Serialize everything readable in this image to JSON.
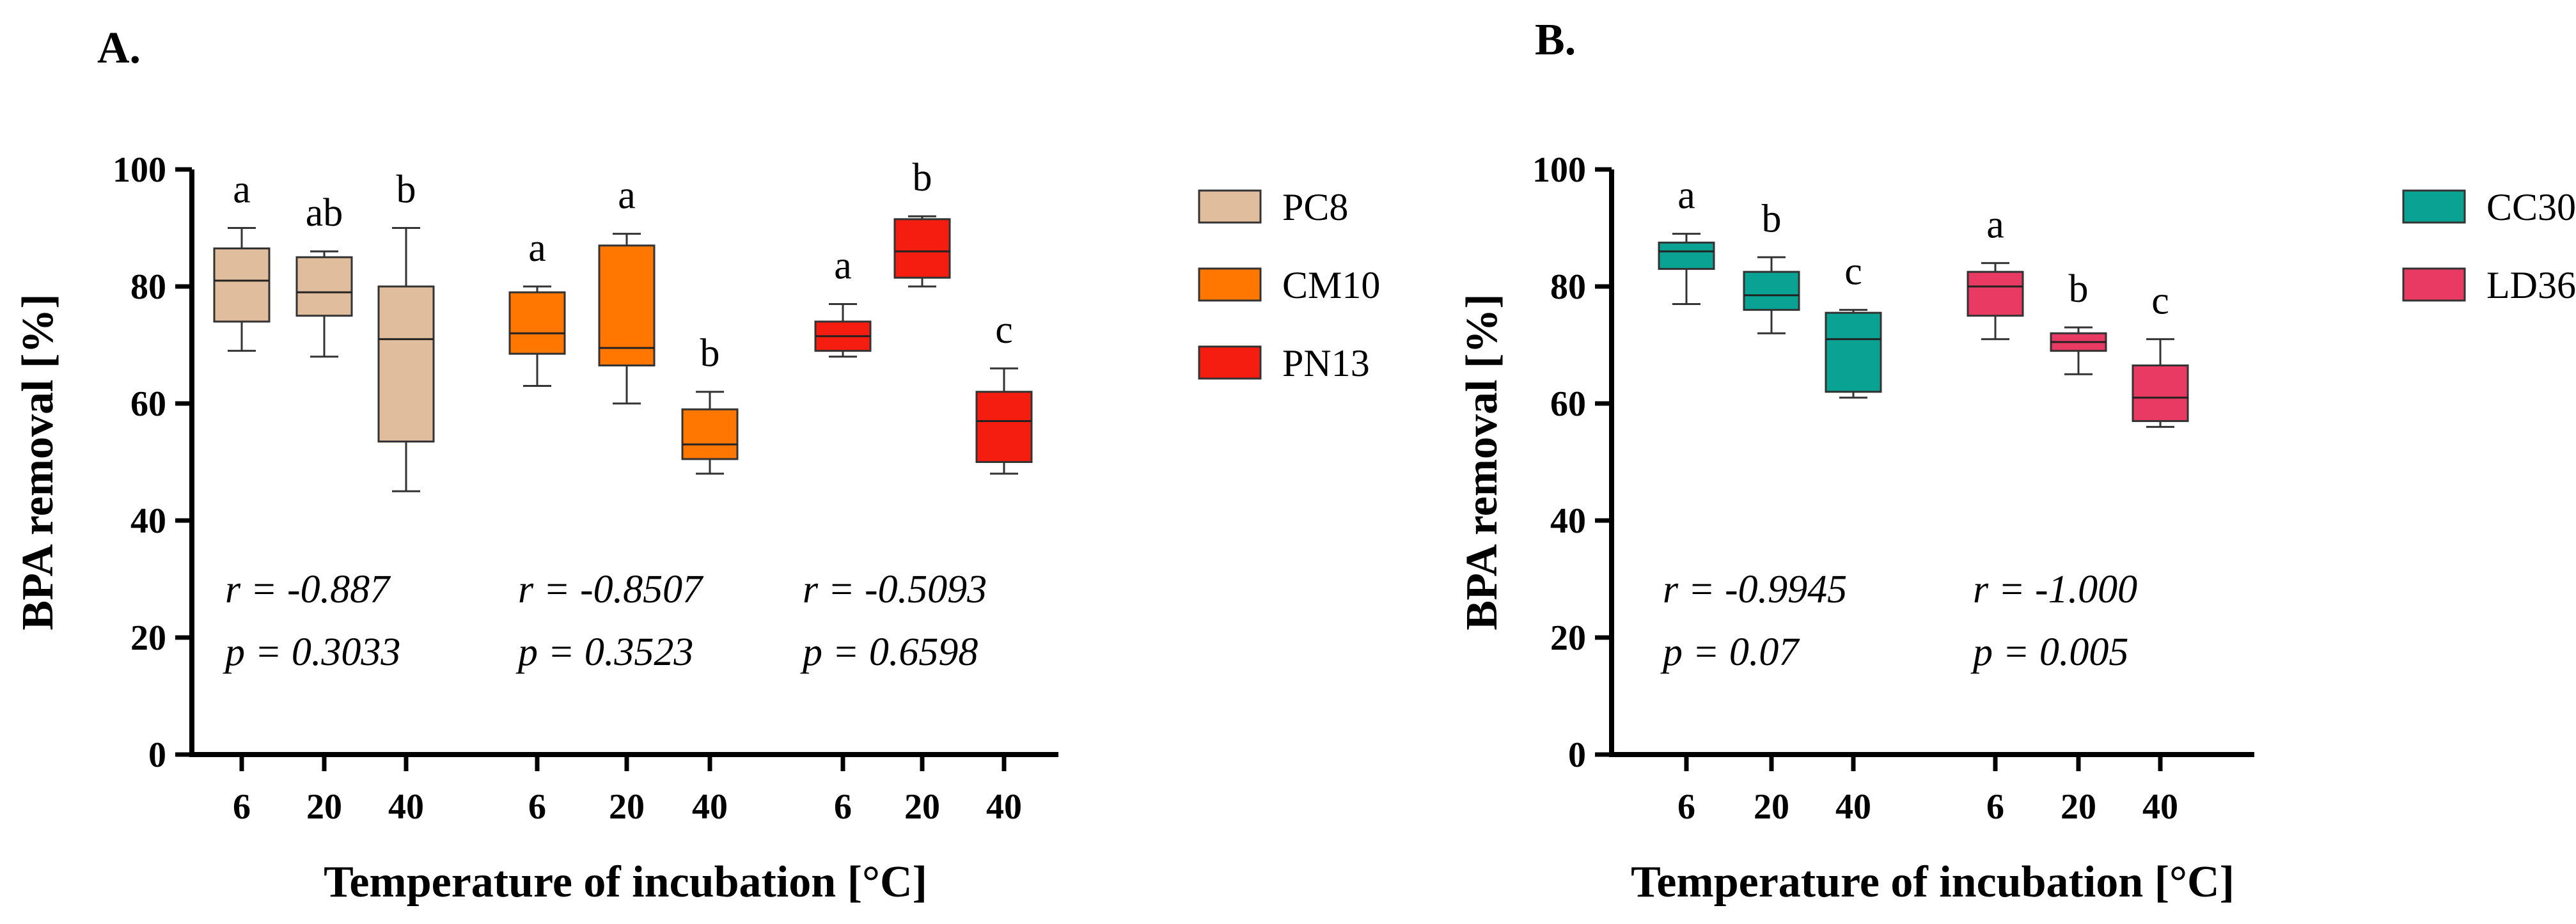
{
  "chart_data": [
    {
      "panel": "A.",
      "type": "box",
      "ylabel": "BPA removal [%]",
      "xlabel": "Temperature of incubation [°C]",
      "ylim": [
        0,
        100
      ],
      "yticks": [
        0,
        20,
        40,
        60,
        80,
        100
      ],
      "legend": [
        {
          "name": "PC8",
          "color": "#e0bd9d"
        },
        {
          "name": "CM10",
          "color": "#ff7700"
        },
        {
          "name": "PN13",
          "color": "#f41d10"
        }
      ],
      "groups": [
        {
          "strain": "PC8",
          "color": "#e0bd9d",
          "boxes": [
            {
              "temp": "6",
              "min": 69,
              "q1": 74,
              "median": 81,
              "q3": 86.5,
              "max": 90,
              "letter": "a"
            },
            {
              "temp": "20",
              "min": 68,
              "q1": 75,
              "median": 79,
              "q3": 85,
              "max": 86,
              "letter": "ab"
            },
            {
              "temp": "40",
              "min": 45,
              "q1": 53.5,
              "median": 71,
              "q3": 80,
              "max": 90,
              "letter": "b"
            }
          ],
          "stats": {
            "r": "r = -0.887",
            "p": "p = 0.3033"
          }
        },
        {
          "strain": "CM10",
          "color": "#ff7700",
          "boxes": [
            {
              "temp": "6",
              "min": 63,
              "q1": 68.5,
              "median": 72,
              "q3": 79,
              "max": 80,
              "letter": "a"
            },
            {
              "temp": "20",
              "min": 60,
              "q1": 66.5,
              "median": 69.5,
              "q3": 87,
              "max": 89,
              "letter": "a"
            },
            {
              "temp": "40",
              "min": 48,
              "q1": 50.5,
              "median": 53,
              "q3": 59,
              "max": 62,
              "letter": "b"
            }
          ],
          "stats": {
            "r": "r = -0.8507",
            "p": "p = 0.3523"
          }
        },
        {
          "strain": "PN13",
          "color": "#f41d10",
          "boxes": [
            {
              "temp": "6",
              "min": 68,
              "q1": 69,
              "median": 71.5,
              "q3": 74,
              "max": 77,
              "letter": "a"
            },
            {
              "temp": "20",
              "min": 80,
              "q1": 81.5,
              "median": 86,
              "q3": 91.5,
              "max": 92,
              "letter": "b"
            },
            {
              "temp": "40",
              "min": 48,
              "q1": 50,
              "median": 57,
              "q3": 62,
              "max": 66,
              "letter": "c"
            }
          ],
          "stats": {
            "r": "r = -0.5093",
            "p": "p = 0.6598"
          }
        }
      ]
    },
    {
      "panel": "B.",
      "type": "box",
      "ylabel": "BPA removal [%]",
      "xlabel": "Temperature of incubation [°C]",
      "ylim": [
        0,
        100
      ],
      "yticks": [
        0,
        20,
        40,
        60,
        80,
        100
      ],
      "legend": [
        {
          "name": "CC30",
          "color": "#0aa393"
        },
        {
          "name": "LD36",
          "color": "#e93a64"
        }
      ],
      "groups": [
        {
          "strain": "CC30",
          "color": "#0aa393",
          "boxes": [
            {
              "temp": "6",
              "min": 77,
              "q1": 83,
              "median": 86,
              "q3": 87.5,
              "max": 89,
              "letter": "a"
            },
            {
              "temp": "20",
              "min": 72,
              "q1": 76,
              "median": 78.5,
              "q3": 82.5,
              "max": 85,
              "letter": "b"
            },
            {
              "temp": "40",
              "min": 61,
              "q1": 62,
              "median": 71,
              "q3": 75.5,
              "max": 76,
              "letter": "c"
            }
          ],
          "stats": {
            "r": "r = -0.9945",
            "p": "p = 0.07"
          }
        },
        {
          "strain": "LD36",
          "color": "#e93a64",
          "boxes": [
            {
              "temp": "6",
              "min": 71,
              "q1": 75,
              "median": 80,
              "q3": 82.5,
              "max": 84,
              "letter": "a"
            },
            {
              "temp": "20",
              "min": 65,
              "q1": 69,
              "median": 70.5,
              "q3": 72,
              "max": 73,
              "letter": "b"
            },
            {
              "temp": "40",
              "min": 56,
              "q1": 57,
              "median": 61,
              "q3": 66.5,
              "max": 71,
              "letter": "c"
            }
          ],
          "stats": {
            "r": "r = -1.000",
            "p": "p = 0.005"
          }
        }
      ]
    }
  ]
}
